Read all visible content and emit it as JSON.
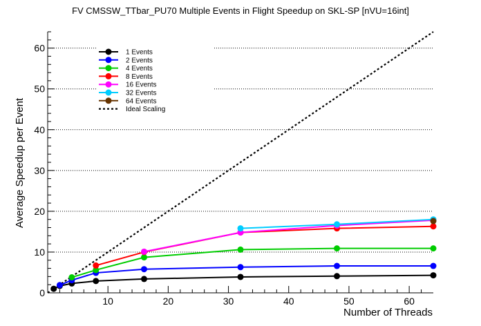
{
  "chart_data": {
    "type": "line",
    "title": "FV CMSSW_TTbar_PU70 Multiple Events in Flight Speedup on SKL-SP [nVU=16int]",
    "xlabel": "Number of Threads",
    "ylabel": "Average Speedup per Event",
    "xlim": [
      0,
      64
    ],
    "ylim": [
      0,
      64
    ],
    "xticks": [
      10,
      20,
      30,
      40,
      50,
      60
    ],
    "yticks": [
      0,
      10,
      20,
      30,
      40,
      50,
      60
    ],
    "grid": "horizontal dotted",
    "legend_position": "top-left",
    "series": [
      {
        "name": "1 Events",
        "color": "#000000",
        "x": [
          1,
          2,
          4,
          8,
          16,
          32,
          48,
          64
        ],
        "y": [
          1.0,
          1.7,
          2.3,
          2.9,
          3.4,
          3.9,
          4.1,
          4.3
        ]
      },
      {
        "name": "2 Events",
        "color": "#0000ff",
        "x": [
          2,
          4,
          8,
          16,
          32,
          48,
          64
        ],
        "y": [
          1.9,
          3.1,
          4.9,
          5.8,
          6.3,
          6.6,
          6.6
        ]
      },
      {
        "name": "4 Events",
        "color": "#00cc00",
        "x": [
          4,
          8,
          16,
          32,
          48,
          64
        ],
        "y": [
          3.8,
          5.6,
          8.7,
          10.6,
          10.9,
          10.9
        ]
      },
      {
        "name": "8 Events",
        "color": "#ff0000",
        "x": [
          8,
          16,
          32,
          48,
          64
        ],
        "y": [
          6.7,
          10.0,
          14.8,
          15.8,
          16.3
        ]
      },
      {
        "name": "16 Events",
        "color": "#ff00ff",
        "x": [
          16,
          32,
          48,
          64
        ],
        "y": [
          10.1,
          14.8,
          16.5,
          17.8
        ]
      },
      {
        "name": "32 Events",
        "color": "#00ccff",
        "x": [
          32,
          48,
          64
        ],
        "y": [
          15.8,
          16.8,
          18.0
        ]
      },
      {
        "name": "64 Events",
        "color": "#663300",
        "x": [
          64
        ],
        "y": [
          17.6
        ]
      }
    ],
    "ideal": {
      "name": "Ideal Scaling",
      "color": "#000000",
      "x": [
        0,
        64
      ],
      "y": [
        0,
        64
      ]
    }
  }
}
